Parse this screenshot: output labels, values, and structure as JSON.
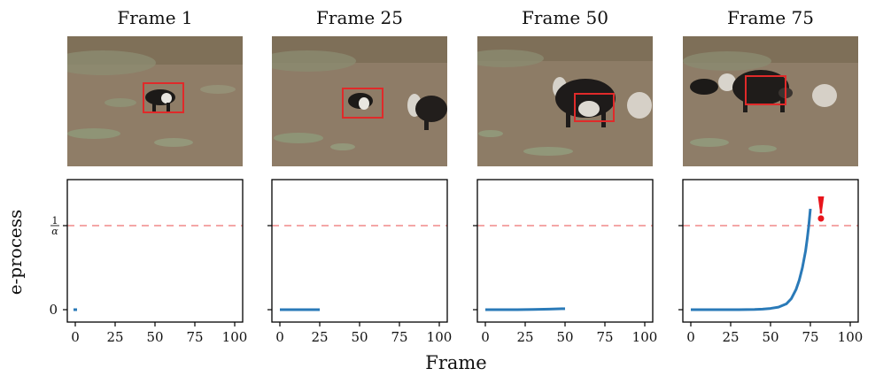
{
  "figure": {
    "ylabel": "e-process",
    "xlabel": "Frame",
    "alarm_glyph": "!",
    "colors": {
      "curve": "#2a7ab8",
      "threshold": "#f4a6a6",
      "alarm": "#e8141b",
      "box": "#e02a2a"
    }
  },
  "panels": [
    {
      "title": "Frame 1",
      "photo": "frame-1-image",
      "alarm": false
    },
    {
      "title": "Frame 25",
      "photo": "frame-25-image",
      "alarm": false
    },
    {
      "title": "Frame 50",
      "photo": "frame-50-image",
      "alarm": false
    },
    {
      "title": "Frame 75",
      "photo": "frame-75-image",
      "alarm": true
    }
  ],
  "chart_data": [
    {
      "type": "line",
      "title": "",
      "xlabel": "",
      "ylabel": "e-process",
      "xlim": [
        -5,
        105
      ],
      "xticks": [
        0,
        25,
        50,
        75,
        100
      ],
      "yticks": [
        "0",
        "1/α"
      ],
      "threshold": "1/α",
      "x": [
        0
      ],
      "y": [
        0
      ]
    },
    {
      "type": "line",
      "title": "",
      "xlabel": "",
      "ylabel": "",
      "xlim": [
        -5,
        105
      ],
      "xticks": [
        0,
        25,
        50,
        75,
        100
      ],
      "threshold": "1/α",
      "x": [
        0,
        5,
        10,
        15,
        20,
        25
      ],
      "y": [
        0,
        0,
        0,
        0,
        0,
        0
      ]
    },
    {
      "type": "line",
      "title": "",
      "xlabel": "",
      "ylabel": "",
      "xlim": [
        -5,
        105
      ],
      "xticks": [
        0,
        25,
        50,
        75,
        100
      ],
      "threshold": "1/α",
      "x": [
        0,
        10,
        20,
        30,
        40,
        50
      ],
      "y": [
        0,
        0,
        0,
        0.003,
        0.006,
        0.012
      ]
    },
    {
      "type": "line",
      "title": "",
      "xlabel": "",
      "ylabel": "",
      "xlim": [
        -5,
        105
      ],
      "xticks": [
        0,
        25,
        50,
        75,
        100
      ],
      "threshold": "1/α",
      "x": [
        0,
        10,
        20,
        30,
        40,
        45,
        50,
        55,
        60,
        63,
        66,
        68,
        70,
        72,
        73,
        74,
        75
      ],
      "y": [
        0,
        0,
        0,
        0,
        0.003,
        0.007,
        0.015,
        0.03,
        0.07,
        0.13,
        0.24,
        0.35,
        0.5,
        0.7,
        0.84,
        1.0,
        1.2
      ]
    }
  ]
}
